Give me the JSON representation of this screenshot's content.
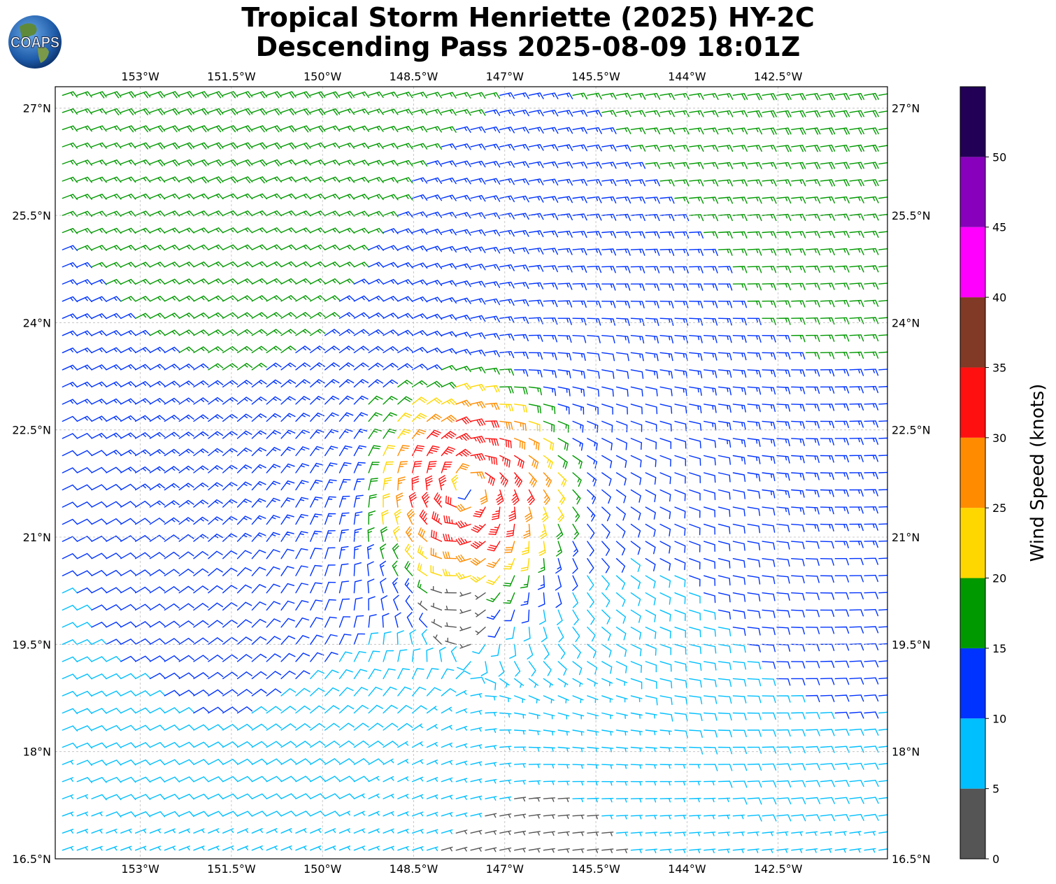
{
  "title": {
    "line1": "Tropical Storm Henriette (2025) HY-2C",
    "line2": "Descending Pass 2025-08-09 18:01Z"
  },
  "logo": {
    "text": "COAPS",
    "icon": "globe-icon"
  },
  "map": {
    "lon_range": [
      -154.4,
      -140.7
    ],
    "lat_range": [
      16.5,
      27.3
    ],
    "lon_ticks": [
      {
        "value": -153.0,
        "label": "153°W"
      },
      {
        "value": -151.5,
        "label": "151.5°W"
      },
      {
        "value": -150.0,
        "label": "150°W"
      },
      {
        "value": -148.5,
        "label": "148.5°W"
      },
      {
        "value": -147.0,
        "label": "147°W"
      },
      {
        "value": -145.5,
        "label": "145.5°W"
      },
      {
        "value": -144.0,
        "label": "144°W"
      },
      {
        "value": -142.5,
        "label": "142.5°W"
      }
    ],
    "lat_ticks": [
      {
        "value": 27.0,
        "label": "27°N"
      },
      {
        "value": 25.5,
        "label": "25.5°N"
      },
      {
        "value": 24.0,
        "label": "24°N"
      },
      {
        "value": 22.5,
        "label": "22.5°N"
      },
      {
        "value": 21.0,
        "label": "21°N"
      },
      {
        "value": 19.5,
        "label": "19.5°N"
      },
      {
        "value": 18.0,
        "label": "18°N"
      },
      {
        "value": 16.5,
        "label": "16.5°N"
      }
    ],
    "grid": true,
    "storm_center": {
      "lon": -147.6,
      "lat": 21.7
    }
  },
  "colorbar": {
    "label": "Wind Speed (knots)",
    "bins": [
      {
        "min": 0,
        "max": 5,
        "color": "#555555"
      },
      {
        "min": 5,
        "max": 10,
        "color": "#00bfff"
      },
      {
        "min": 10,
        "max": 15,
        "color": "#0033ff"
      },
      {
        "min": 15,
        "max": 20,
        "color": "#009900"
      },
      {
        "min": 20,
        "max": 25,
        "color": "#ffd700"
      },
      {
        "min": 25,
        "max": 30,
        "color": "#ff8c00"
      },
      {
        "min": 30,
        "max": 35,
        "color": "#ff1010"
      },
      {
        "min": 35,
        "max": 40,
        "color": "#803a26"
      },
      {
        "min": 40,
        "max": 45,
        "color": "#ff00ff"
      },
      {
        "min": 45,
        "max": 50,
        "color": "#8800bb"
      },
      {
        "min": 50,
        "max": 55,
        "color": "#220055"
      }
    ],
    "tick_labels": [
      "0",
      "5",
      "10",
      "15",
      "20",
      "25",
      "30",
      "35",
      "40",
      "45",
      "50"
    ]
  }
}
